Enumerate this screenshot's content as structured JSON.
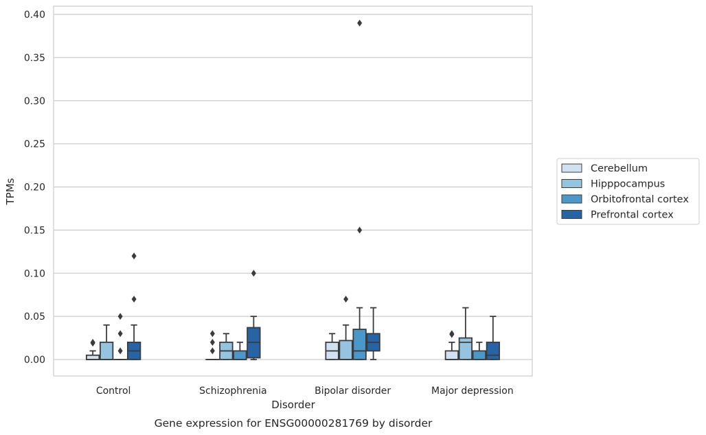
{
  "chart_data": {
    "type": "boxplot",
    "xlabel": "Disorder",
    "ylabel": "TPMs",
    "caption": "Gene expression for ENSG00000281769 by disorder",
    "ylim": [
      -0.018,
      0.41
    ],
    "yticks": [
      0.0,
      0.05,
      0.1,
      0.15,
      0.2,
      0.25,
      0.3,
      0.35,
      0.4
    ],
    "ytick_labels": [
      "0.00",
      "0.05",
      "0.10",
      "0.15",
      "0.20",
      "0.25",
      "0.30",
      "0.35",
      "0.40"
    ],
    "grid": "horizontal",
    "legend_position": "right",
    "categories": [
      "Control",
      "Schizophrenia",
      "Bipolar disorder",
      "Major depression"
    ],
    "series": [
      {
        "name": "Cerebellum",
        "color": "#d0e1f2",
        "boxes": [
          {
            "q1": 0.0,
            "median": 0.0,
            "q3": 0.005,
            "whislo": 0.0,
            "whishi": 0.01,
            "fliers": [
              0.02,
              0.019
            ]
          },
          {
            "q1": 0.0,
            "median": 0.0,
            "q3": 0.0,
            "whislo": 0.0,
            "whishi": 0.0,
            "fliers": [
              0.01,
              0.02,
              0.03
            ]
          },
          {
            "q1": 0.0,
            "median": 0.01,
            "q3": 0.02,
            "whislo": 0.0,
            "whishi": 0.03,
            "fliers": []
          },
          {
            "q1": 0.0,
            "median": 0.0,
            "q3": 0.01,
            "whislo": 0.0,
            "whishi": 0.02,
            "fliers": [
              0.03,
              0.029
            ]
          }
        ]
      },
      {
        "name": "Hipppocampus",
        "color": "#94c4df",
        "boxes": [
          {
            "q1": 0.0,
            "median": 0.0,
            "q3": 0.02,
            "whislo": 0.0,
            "whishi": 0.04,
            "fliers": []
          },
          {
            "q1": 0.0,
            "median": 0.01,
            "q3": 0.02,
            "whislo": 0.0,
            "whishi": 0.03,
            "fliers": []
          },
          {
            "q1": 0.0,
            "median": 0.0,
            "q3": 0.022,
            "whislo": 0.0,
            "whishi": 0.04,
            "fliers": [
              0.07
            ]
          },
          {
            "q1": 0.0,
            "median": 0.02,
            "q3": 0.025,
            "whislo": 0.0,
            "whishi": 0.06,
            "fliers": []
          }
        ]
      },
      {
        "name": "Orbitofrontal cortex",
        "color": "#4a98c9",
        "boxes": [
          {
            "q1": 0.0,
            "median": 0.0,
            "q3": 0.0,
            "whislo": 0.0,
            "whishi": 0.0,
            "fliers": [
              0.01,
              0.03,
              0.05
            ]
          },
          {
            "q1": 0.0,
            "median": 0.0,
            "q3": 0.01,
            "whislo": 0.0,
            "whishi": 0.02,
            "fliers": []
          },
          {
            "q1": 0.0,
            "median": 0.01,
            "q3": 0.035,
            "whislo": 0.0,
            "whishi": 0.06,
            "fliers": [
              0.15,
              0.39
            ]
          },
          {
            "q1": 0.0,
            "median": 0.0,
            "q3": 0.01,
            "whislo": 0.0,
            "whishi": 0.02,
            "fliers": []
          }
        ]
      },
      {
        "name": "Prefrontal cortex",
        "color": "#2664a6",
        "boxes": [
          {
            "q1": 0.0,
            "median": 0.01,
            "q3": 0.02,
            "whislo": 0.0,
            "whishi": 0.04,
            "fliers": [
              0.07,
              0.12
            ]
          },
          {
            "q1": 0.002,
            "median": 0.02,
            "q3": 0.037,
            "whislo": 0.0,
            "whishi": 0.05,
            "fliers": [
              0.1
            ]
          },
          {
            "q1": 0.01,
            "median": 0.02,
            "q3": 0.03,
            "whislo": 0.0,
            "whishi": 0.06,
            "fliers": []
          },
          {
            "q1": 0.0,
            "median": 0.005,
            "q3": 0.02,
            "whislo": 0.0,
            "whishi": 0.05,
            "fliers": []
          }
        ]
      }
    ]
  },
  "colors": {
    "grid": "#cccccc",
    "frame": "#cccccc",
    "line": "#3b3b3b",
    "legend_border": "#cccccc"
  }
}
